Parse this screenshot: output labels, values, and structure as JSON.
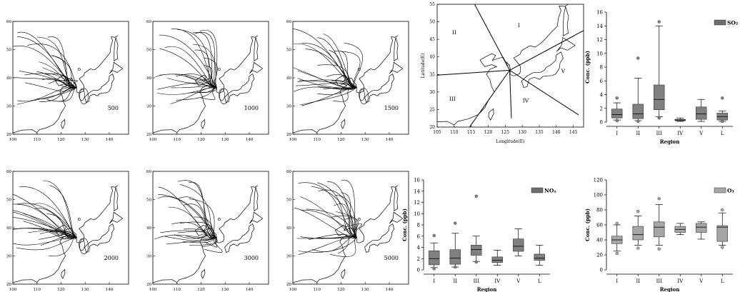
{
  "trajectory_maps": {
    "labels": [
      "500",
      "1000",
      "1500",
      "2000",
      "3000",
      "5000"
    ],
    "x_ticks": [
      100,
      110,
      120,
      130,
      140
    ],
    "y_ticks": [
      20,
      30,
      40,
      50,
      60
    ]
  },
  "region_map": {
    "xlabel": "Longitude(E)",
    "ylabel": "Latitude(E)",
    "x_ticks": [
      105,
      110,
      115,
      120,
      125,
      130,
      135,
      140,
      145
    ],
    "y_ticks": [
      20,
      25,
      30,
      35,
      40,
      45,
      50,
      55
    ],
    "region_labels": [
      {
        "label": "I",
        "lon": 129,
        "lat": 48.5
      },
      {
        "label": "II",
        "lon": 110,
        "lat": 46.5
      },
      {
        "label": "III",
        "lon": 109.5,
        "lat": 27.5
      },
      {
        "label": "IV",
        "lon": 131,
        "lat": 27
      },
      {
        "label": "V",
        "lon": 142,
        "lat": 35.5
      },
      {
        "label": "L",
        "lon": 125.7,
        "lat": 37.6
      }
    ],
    "center": {
      "lon": 126.3,
      "lat": 36.2
    }
  },
  "chart_data": [
    {
      "type": "boxplot",
      "legend": "SO₂",
      "xlabel": "Region",
      "ylabel": "Conc. (ppb)",
      "categories": [
        "I",
        "II",
        "III",
        "IV",
        "V",
        "L"
      ],
      "ylim": [
        0,
        16
      ],
      "yticks": [
        0,
        2,
        4,
        6,
        8,
        10,
        12,
        14,
        16
      ],
      "boxes": [
        {
          "min": 0.3,
          "q1": 0.6,
          "median": 1.1,
          "q3": 1.9,
          "max": 2.8,
          "outliers": [
            3.5,
            0.2
          ]
        },
        {
          "min": 0.2,
          "q1": 0.5,
          "median": 1.2,
          "q3": 2.6,
          "max": 6.4,
          "outliers": [
            9.3,
            0.1
          ]
        },
        {
          "min": 0.8,
          "q1": 1.8,
          "median": 3.3,
          "q3": 5.4,
          "max": 14.0,
          "outliers": [
            14.6,
            0.6
          ]
        },
        {
          "min": 0.1,
          "q1": 0.2,
          "median": 0.3,
          "q3": 0.4,
          "max": 0.6,
          "outliers": []
        },
        {
          "min": 0.1,
          "q1": 0.4,
          "median": 1.2,
          "q3": 2.2,
          "max": 3.3,
          "outliers": []
        },
        {
          "min": 0.1,
          "q1": 0.3,
          "median": 0.8,
          "q3": 1.3,
          "max": 1.6,
          "outliers": [
            3.5,
            0.1
          ]
        }
      ],
      "color": "#808080",
      "legend_color": "#6e6e6e"
    },
    {
      "type": "boxplot",
      "legend": "NOₓ",
      "xlabel": "Region",
      "ylabel": "Conc. (ppb)",
      "categories": [
        "I",
        "II",
        "III",
        "IV",
        "V",
        "L"
      ],
      "ylim": [
        0,
        16
      ],
      "yticks": [
        0,
        2,
        4,
        6,
        8,
        10,
        12,
        14,
        16
      ],
      "boxes": [
        {
          "min": 0.4,
          "q1": 0.9,
          "median": 2.0,
          "q3": 3.4,
          "max": 4.8,
          "outliers": [
            6.1,
            0.2
          ]
        },
        {
          "min": 0.5,
          "q1": 1.0,
          "median": 2.1,
          "q3": 3.6,
          "max": 6.5,
          "outliers": [
            8.3,
            0.5
          ]
        },
        {
          "min": 1.5,
          "q1": 2.6,
          "median": 3.6,
          "q3": 4.4,
          "max": 6.0,
          "outliers": [
            13.1,
            1.4
          ]
        },
        {
          "min": 0.8,
          "q1": 1.3,
          "median": 1.7,
          "q3": 2.3,
          "max": 3.5,
          "outliers": []
        },
        {
          "min": 2.5,
          "q1": 3.3,
          "median": 4.2,
          "q3": 5.5,
          "max": 7.3,
          "outliers": []
        },
        {
          "min": 0.8,
          "q1": 1.7,
          "median": 2.1,
          "q3": 2.8,
          "max": 4.4,
          "outliers": []
        }
      ],
      "color": "#808080",
      "legend_color": "#6e6e6e"
    },
    {
      "type": "boxplot",
      "legend": "O₃",
      "xlabel": "Region",
      "ylabel": "Conc. (ppb)",
      "categories": [
        "I",
        "II",
        "III",
        "IV",
        "V",
        "L"
      ],
      "ylim": [
        0,
        120
      ],
      "yticks": [
        0,
        20,
        40,
        60,
        80,
        100,
        120
      ],
      "boxes": [
        {
          "min": 25,
          "q1": 35,
          "median": 40,
          "q3": 45,
          "max": 60,
          "outliers": [
            62,
            22
          ]
        },
        {
          "min": 33,
          "q1": 40,
          "median": 47,
          "q3": 58,
          "max": 72,
          "outliers": [
            78,
            29
          ]
        },
        {
          "min": 33,
          "q1": 44,
          "median": 57,
          "q3": 64,
          "max": 87,
          "outliers": [
            95,
            28
          ]
        },
        {
          "min": 47,
          "q1": 50,
          "median": 54,
          "q3": 58,
          "max": 62,
          "outliers": []
        },
        {
          "min": 41,
          "q1": 50,
          "median": 57,
          "q3": 62,
          "max": 64,
          "outliers": []
        },
        {
          "min": 33,
          "q1": 38,
          "median": 57,
          "q3": 59,
          "max": 76,
          "outliers": [
            80,
            30
          ]
        }
      ],
      "color": "#a6a6a6",
      "legend_color": "#a6a6a6"
    }
  ]
}
